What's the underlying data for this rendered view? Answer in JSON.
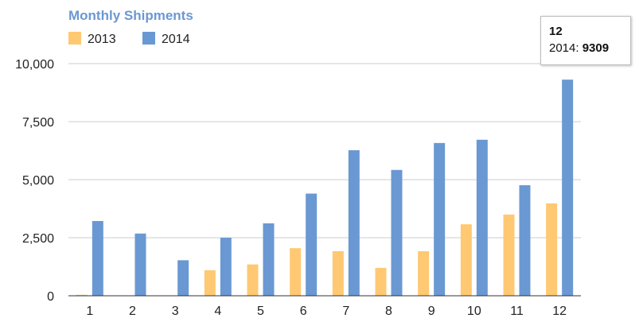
{
  "chart_data": {
    "type": "bar",
    "title": "Monthly Shipments",
    "categories": [
      "1",
      "2",
      "3",
      "4",
      "5",
      "6",
      "7",
      "8",
      "9",
      "10",
      "11",
      "12"
    ],
    "series": [
      {
        "name": "2013",
        "color": "#FFC872",
        "values": [
          40,
          0,
          0,
          1100,
          1350,
          2050,
          1920,
          1200,
          1920,
          3080,
          3500,
          3980
        ]
      },
      {
        "name": "2014",
        "color": "#6A98D3",
        "values": [
          3220,
          2680,
          1530,
          2500,
          3120,
          4400,
          6270,
          5420,
          6580,
          6720,
          4760,
          9309
        ]
      }
    ],
    "y_ticks": [
      "0",
      "2,500",
      "5,000",
      "7,500",
      "10,000"
    ],
    "ylim": [
      0,
      10000
    ],
    "grid": true,
    "legend_position": "top-left",
    "xlabel": "",
    "ylabel": ""
  },
  "colors": {
    "title": "#6A98D3",
    "grid": "#cccccc",
    "axis": "#333333"
  },
  "tooltip": {
    "category": "12",
    "series_label": "2014: ",
    "value": "9309"
  }
}
